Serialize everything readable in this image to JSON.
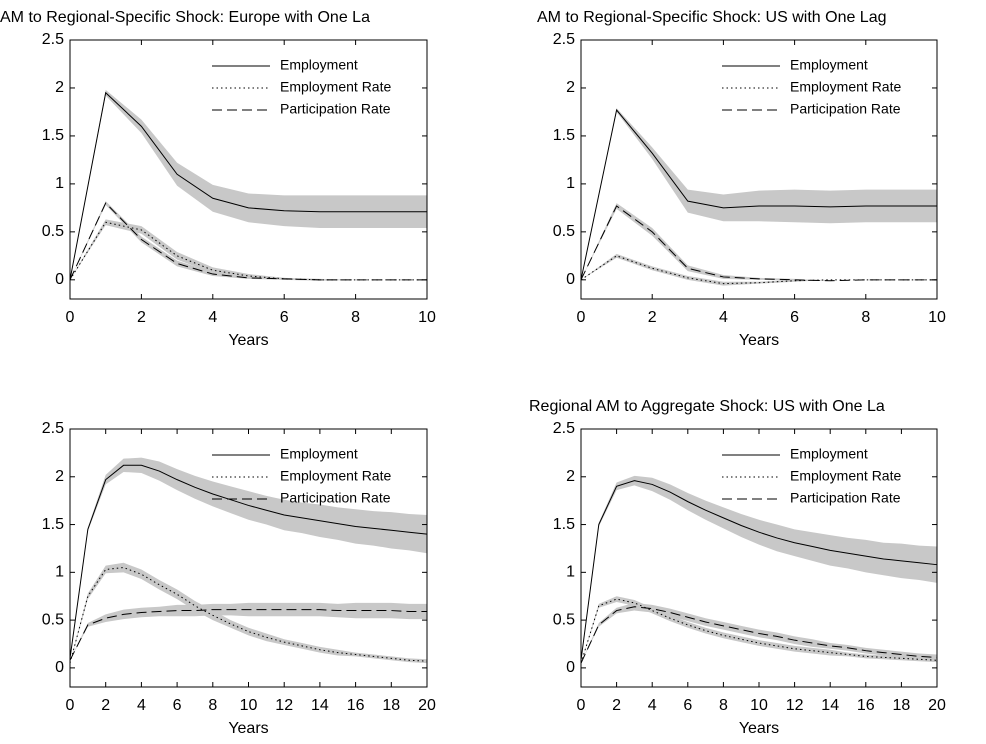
{
  "chart_data": [
    {
      "type": "line",
      "title": "AM to Regional-Specific Shock: Europe with One La",
      "xlabel": "Years",
      "x": [
        0,
        1,
        2,
        3,
        4,
        5,
        6,
        7,
        8,
        9,
        10
      ],
      "xlim": [
        0,
        10
      ],
      "xticks": [
        0,
        2,
        4,
        6,
        8,
        10
      ],
      "ylim": [
        -0.2,
        2.5
      ],
      "yticks": [
        0,
        0.5,
        1,
        1.5,
        2,
        2.5
      ],
      "legend": "upper right",
      "band_color": "#c8c8c8",
      "series": [
        {
          "name": "Employment",
          "color": "#000000",
          "style": "solid",
          "values": [
            0,
            1.95,
            1.6,
            1.1,
            0.85,
            0.75,
            0.72,
            0.71,
            0.71,
            0.71,
            0.71
          ],
          "error": [
            0,
            0.03,
            0.07,
            0.12,
            0.14,
            0.15,
            0.16,
            0.17,
            0.17,
            0.17,
            0.17
          ]
        },
        {
          "name": "Employment Rate",
          "color": "#000000",
          "style": "dotted",
          "values": [
            0,
            0.6,
            0.52,
            0.25,
            0.1,
            0.04,
            0.01,
            0,
            0,
            0,
            0
          ],
          "error": [
            0,
            0.03,
            0.04,
            0.04,
            0.03,
            0.02,
            0.01,
            0.01,
            0,
            0,
            0
          ]
        },
        {
          "name": "Participation Rate",
          "color": "#000000",
          "style": "dashed",
          "values": [
            0,
            0.8,
            0.42,
            0.17,
            0.06,
            0.02,
            0.01,
            0,
            0,
            0,
            0
          ],
          "error": [
            0,
            0.02,
            0.03,
            0.03,
            0.02,
            0.01,
            0.01,
            0,
            0,
            0,
            0
          ]
        }
      ]
    },
    {
      "type": "line",
      "title": "AM to Regional-Specific Shock: US with One Lag",
      "xlabel": "Years",
      "x": [
        0,
        1,
        2,
        3,
        4,
        5,
        6,
        7,
        8,
        9,
        10
      ],
      "xlim": [
        0,
        10
      ],
      "xticks": [
        0,
        2,
        4,
        6,
        8,
        10
      ],
      "ylim": [
        -0.2,
        2.5
      ],
      "yticks": [
        0,
        0.5,
        1,
        1.5,
        2,
        2.5
      ],
      "legend": "upper right",
      "band_color": "#c8c8c8",
      "series": [
        {
          "name": "Employment",
          "color": "#000000",
          "style": "solid",
          "values": [
            0,
            1.77,
            1.32,
            0.82,
            0.75,
            0.77,
            0.77,
            0.76,
            0.77,
            0.77,
            0.77
          ],
          "error": [
            0,
            0.02,
            0.06,
            0.12,
            0.14,
            0.16,
            0.17,
            0.17,
            0.17,
            0.17,
            0.17
          ]
        },
        {
          "name": "Employment Rate",
          "color": "#000000",
          "style": "dotted",
          "values": [
            0,
            0.25,
            0.12,
            0.02,
            -0.04,
            -0.03,
            -0.01,
            0,
            0,
            0,
            0
          ],
          "error": [
            0,
            0.02,
            0.02,
            0.02,
            0.02,
            0.01,
            0.01,
            0,
            0,
            0,
            0
          ]
        },
        {
          "name": "Participation Rate",
          "color": "#000000",
          "style": "dashed",
          "values": [
            0,
            0.77,
            0.5,
            0.12,
            0.03,
            0.01,
            0,
            -0.01,
            0,
            0,
            0
          ],
          "error": [
            0,
            0.03,
            0.04,
            0.03,
            0.02,
            0.01,
            0.01,
            0,
            0,
            0,
            0
          ]
        }
      ]
    },
    {
      "type": "line",
      "xlabel": "Years",
      "x": [
        0,
        1,
        2,
        3,
        4,
        5,
        6,
        7,
        8,
        9,
        10,
        11,
        12,
        13,
        14,
        15,
        16,
        17,
        18,
        19,
        20
      ],
      "xlim": [
        0,
        20
      ],
      "xticks": [
        0,
        2,
        4,
        6,
        8,
        10,
        12,
        14,
        16,
        18,
        20
      ],
      "ylim": [
        -0.2,
        2.5
      ],
      "yticks": [
        0,
        0.5,
        1,
        1.5,
        2,
        2.5
      ],
      "legend": "upper right",
      "band_color": "#c8c8c8",
      "series": [
        {
          "name": "Employment",
          "color": "#000000",
          "style": "solid",
          "values": [
            0.1,
            1.45,
            1.97,
            2.12,
            2.12,
            2.06,
            1.97,
            1.89,
            1.82,
            1.76,
            1.7,
            1.65,
            1.6,
            1.57,
            1.54,
            1.51,
            1.48,
            1.46,
            1.44,
            1.42,
            1.4
          ],
          "error": [
            0,
            0.02,
            0.05,
            0.07,
            0.08,
            0.1,
            0.11,
            0.12,
            0.13,
            0.14,
            0.15,
            0.15,
            0.16,
            0.16,
            0.17,
            0.17,
            0.18,
            0.18,
            0.19,
            0.19,
            0.2
          ]
        },
        {
          "name": "Employment Rate",
          "color": "#000000",
          "style": "dotted",
          "values": [
            0.05,
            0.75,
            1.03,
            1.05,
            0.98,
            0.87,
            0.77,
            0.65,
            0.55,
            0.46,
            0.38,
            0.32,
            0.27,
            0.23,
            0.19,
            0.16,
            0.14,
            0.12,
            0.1,
            0.08,
            0.07
          ],
          "error": [
            0,
            0.03,
            0.04,
            0.05,
            0.05,
            0.05,
            0.05,
            0.05,
            0.05,
            0.04,
            0.04,
            0.04,
            0.03,
            0.03,
            0.03,
            0.03,
            0.02,
            0.02,
            0.02,
            0.02,
            0.02
          ]
        },
        {
          "name": "Participation Rate",
          "color": "#000000",
          "style": "dashed",
          "values": [
            0.08,
            0.45,
            0.52,
            0.56,
            0.58,
            0.59,
            0.6,
            0.6,
            0.61,
            0.61,
            0.61,
            0.61,
            0.61,
            0.61,
            0.61,
            0.6,
            0.6,
            0.6,
            0.6,
            0.59,
            0.59
          ],
          "error": [
            0,
            0.02,
            0.04,
            0.05,
            0.05,
            0.05,
            0.06,
            0.06,
            0.06,
            0.06,
            0.07,
            0.07,
            0.07,
            0.07,
            0.07,
            0.07,
            0.08,
            0.08,
            0.08,
            0.08,
            0.08
          ]
        }
      ]
    },
    {
      "type": "line",
      "title": "Regional AM to Aggregate Shock: US with One La",
      "xlabel": "Years",
      "x": [
        0,
        1,
        2,
        3,
        4,
        5,
        6,
        7,
        8,
        9,
        10,
        11,
        12,
        13,
        14,
        15,
        16,
        17,
        18,
        19,
        20
      ],
      "xlim": [
        0,
        20
      ],
      "xticks": [
        0,
        2,
        4,
        6,
        8,
        10,
        12,
        14,
        16,
        18,
        20
      ],
      "ylim": [
        -0.2,
        2.5
      ],
      "yticks": [
        0,
        0.5,
        1,
        1.5,
        2,
        2.5
      ],
      "legend": "upper right",
      "band_color": "#c8c8c8",
      "series": [
        {
          "name": "Employment",
          "color": "#000000",
          "style": "solid",
          "values": [
            0.08,
            1.5,
            1.9,
            1.96,
            1.92,
            1.84,
            1.74,
            1.65,
            1.57,
            1.49,
            1.42,
            1.36,
            1.31,
            1.27,
            1.23,
            1.2,
            1.17,
            1.14,
            1.12,
            1.1,
            1.08
          ],
          "error": [
            0,
            0.02,
            0.04,
            0.05,
            0.07,
            0.08,
            0.09,
            0.1,
            0.11,
            0.12,
            0.13,
            0.14,
            0.14,
            0.15,
            0.16,
            0.16,
            0.17,
            0.17,
            0.18,
            0.18,
            0.19
          ]
        },
        {
          "name": "Employment Rate",
          "color": "#000000",
          "style": "dotted",
          "values": [
            0.05,
            0.65,
            0.72,
            0.68,
            0.6,
            0.52,
            0.45,
            0.39,
            0.34,
            0.3,
            0.26,
            0.23,
            0.2,
            0.18,
            0.16,
            0.14,
            0.12,
            0.11,
            0.1,
            0.09,
            0.08
          ],
          "error": [
            0,
            0.02,
            0.03,
            0.03,
            0.03,
            0.03,
            0.03,
            0.03,
            0.03,
            0.03,
            0.03,
            0.03,
            0.03,
            0.03,
            0.03,
            0.02,
            0.02,
            0.02,
            0.02,
            0.02,
            0.02
          ]
        },
        {
          "name": "Participation Rate",
          "color": "#000000",
          "style": "dashed",
          "values": [
            0.05,
            0.45,
            0.6,
            0.64,
            0.62,
            0.58,
            0.53,
            0.48,
            0.44,
            0.4,
            0.36,
            0.33,
            0.29,
            0.26,
            0.23,
            0.21,
            0.18,
            0.16,
            0.14,
            0.12,
            0.11
          ],
          "error": [
            0,
            0.02,
            0.03,
            0.04,
            0.04,
            0.04,
            0.04,
            0.04,
            0.04,
            0.04,
            0.04,
            0.04,
            0.04,
            0.04,
            0.03,
            0.03,
            0.03,
            0.03,
            0.03,
            0.03,
            0.03
          ]
        }
      ]
    }
  ]
}
